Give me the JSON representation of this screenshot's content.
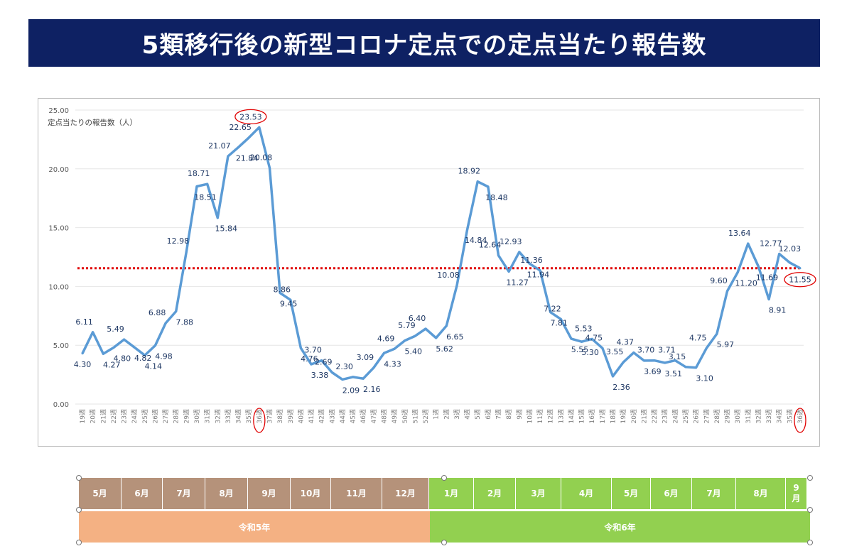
{
  "title": "5類移行後の新型コロナ定点での定点当たり報告数",
  "colors": {
    "title_bg": "#0e2163",
    "line": "#5b9bd5",
    "ref_line": "#e00000",
    "highlight": "#e00000",
    "brown": "#b5927a",
    "orange": "#f4b183",
    "green": "#92d050"
  },
  "chart_data": {
    "type": "line",
    "ylabel": "定点当たりの報告数（人）",
    "ylim": [
      0,
      25
    ],
    "yticks": [
      "0.00",
      "5.00",
      "10.00",
      "15.00",
      "20.00",
      "25.00"
    ],
    "grid": true,
    "x": [
      "19週",
      "20週",
      "21週",
      "22週",
      "23週",
      "24週",
      "25週",
      "26週",
      "27週",
      "28週",
      "29週",
      "30週",
      "31週",
      "32週",
      "33週",
      "34週",
      "35週",
      "36週",
      "37週",
      "38週",
      "39週",
      "40週",
      "41週",
      "42週",
      "43週",
      "44週",
      "45週",
      "46週",
      "47週",
      "48週",
      "49週",
      "50週",
      "51週",
      "52週",
      "1週",
      "2週",
      "3週",
      "4週",
      "5週",
      "6週",
      "7週",
      "8週",
      "9週",
      "10週",
      "11週",
      "12週",
      "13週",
      "14週",
      "15週",
      "16週",
      "17週",
      "18週",
      "19週",
      "20週",
      "21週",
      "22週",
      "23週",
      "24週",
      "25週",
      "26週",
      "27週",
      "28週",
      "29週",
      "30週",
      "31週",
      "32週",
      "33週",
      "34週",
      "35週",
      "36週"
    ],
    "series": [
      {
        "values": [
          4.3,
          6.11,
          4.27,
          4.8,
          5.49,
          4.82,
          4.14,
          4.98,
          6.88,
          7.88,
          12.98,
          18.51,
          18.71,
          15.84,
          21.07,
          21.84,
          22.65,
          23.53,
          20.08,
          9.45,
          8.86,
          4.76,
          3.38,
          3.7,
          2.69,
          2.09,
          2.3,
          2.16,
          3.09,
          4.33,
          4.69,
          5.4,
          5.79,
          6.4,
          5.62,
          6.65,
          10.08,
          14.84,
          18.92,
          18.48,
          12.64,
          11.27,
          12.93,
          11.94,
          11.36,
          7.81,
          7.22,
          5.55,
          5.3,
          5.53,
          4.75,
          2.36,
          3.55,
          4.37,
          3.69,
          3.7,
          3.51,
          3.71,
          3.15,
          3.1,
          4.75,
          5.97,
          9.6,
          11.2,
          13.64,
          11.69,
          8.91,
          12.77,
          12.03,
          11.55
        ]
      }
    ],
    "reference_line": 11.55,
    "highlighted_points": [
      17,
      69
    ],
    "highlighted_ticks": [
      17,
      69
    ]
  },
  "months": [
    {
      "label": "5月",
      "year": 5
    },
    {
      "label": "6月",
      "year": 5
    },
    {
      "label": "7月",
      "year": 5
    },
    {
      "label": "8月",
      "year": 5
    },
    {
      "label": "9月",
      "year": 5
    },
    {
      "label": "10月",
      "year": 5
    },
    {
      "label": "11月",
      "year": 5
    },
    {
      "label": "12月",
      "year": 5
    },
    {
      "label": "1月",
      "year": 6
    },
    {
      "label": "2月",
      "year": 6
    },
    {
      "label": "3月",
      "year": 6
    },
    {
      "label": "4月",
      "year": 6
    },
    {
      "label": "5月",
      "year": 6
    },
    {
      "label": "6月",
      "year": 6
    },
    {
      "label": "7月",
      "year": 6
    },
    {
      "label": "8月",
      "year": 6
    },
    {
      "label": "9\n月",
      "year": 6
    }
  ],
  "years": [
    {
      "label": "令和5年"
    },
    {
      "label": "令和6年"
    }
  ]
}
